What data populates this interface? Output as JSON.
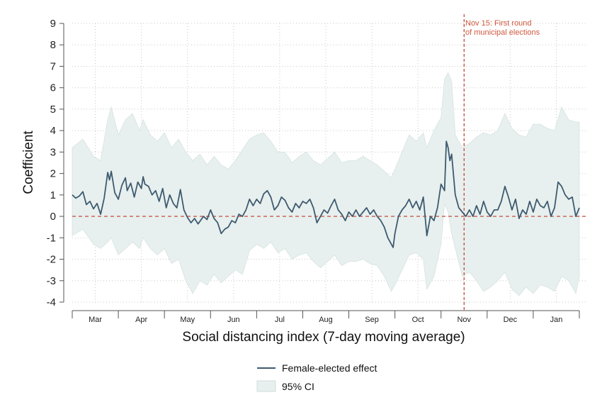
{
  "chart_data": {
    "type": "line",
    "xlabel": "Social distancing index (7-day moving average)",
    "ylabel": "Coefficient",
    "ylim": [
      -4,
      9
    ],
    "yticks": [
      -4,
      -3,
      -2,
      -1,
      0,
      1,
      2,
      3,
      4,
      5,
      6,
      7,
      8,
      9
    ],
    "x_tick_labels": [
      "Mar",
      "Apr",
      "May",
      "Jun",
      "Jul",
      "Aug",
      "Sep",
      "Oct",
      "Nov",
      "Dec",
      "Jan"
    ],
    "grid": true,
    "legend_position": "bottom-center",
    "reference_line_y": 0,
    "annotation": {
      "text_line1": "Nov 15: First round",
      "text_line2": "of municipal elections",
      "month_index": 8.5
    },
    "colors": {
      "line": "#3e5a70",
      "band": "#e7f0ee",
      "reference": "#c0392b",
      "annotation": "#d0583e"
    },
    "series": [
      {
        "name": "Female-elected effect",
        "kind": "line",
        "points": [
          [
            0.0,
            1.0
          ],
          [
            0.1,
            0.85
          ],
          [
            0.2,
            0.95
          ],
          [
            0.3,
            1.15
          ],
          [
            0.4,
            0.55
          ],
          [
            0.5,
            0.7
          ],
          [
            0.6,
            0.35
          ],
          [
            0.7,
            0.6
          ],
          [
            0.8,
            0.1
          ],
          [
            0.9,
            0.85
          ],
          [
            1.0,
            2.05
          ],
          [
            1.05,
            1.7
          ],
          [
            1.1,
            2.1
          ],
          [
            1.2,
            1.1
          ],
          [
            1.3,
            0.8
          ],
          [
            1.4,
            1.45
          ],
          [
            1.5,
            1.8
          ],
          [
            1.55,
            1.2
          ],
          [
            1.65,
            1.55
          ],
          [
            1.75,
            0.9
          ],
          [
            1.85,
            1.6
          ],
          [
            1.95,
            1.3
          ],
          [
            2.0,
            1.85
          ],
          [
            2.05,
            1.5
          ],
          [
            2.15,
            1.4
          ],
          [
            2.25,
            1.0
          ],
          [
            2.35,
            1.2
          ],
          [
            2.45,
            0.7
          ],
          [
            2.55,
            1.3
          ],
          [
            2.65,
            0.4
          ],
          [
            2.75,
            1.0
          ],
          [
            2.85,
            0.6
          ],
          [
            2.95,
            0.4
          ],
          [
            3.05,
            1.25
          ],
          [
            3.15,
            0.3
          ],
          [
            3.25,
            -0.05
          ],
          [
            3.35,
            -0.3
          ],
          [
            3.45,
            -0.1
          ],
          [
            3.55,
            -0.35
          ],
          [
            3.7,
            0.0
          ],
          [
            3.8,
            -0.15
          ],
          [
            3.9,
            0.3
          ],
          [
            4.0,
            -0.1
          ],
          [
            4.1,
            -0.3
          ],
          [
            4.2,
            -0.8
          ],
          [
            4.3,
            -0.6
          ],
          [
            4.4,
            -0.5
          ],
          [
            4.5,
            -0.2
          ],
          [
            4.6,
            -0.3
          ],
          [
            4.7,
            0.1
          ],
          [
            4.8,
            0.0
          ],
          [
            4.9,
            0.3
          ],
          [
            5.0,
            0.8
          ],
          [
            5.1,
            0.5
          ],
          [
            5.2,
            0.8
          ],
          [
            5.3,
            0.6
          ],
          [
            5.4,
            1.05
          ],
          [
            5.5,
            1.2
          ],
          [
            5.6,
            0.9
          ],
          [
            5.7,
            0.3
          ],
          [
            5.8,
            0.5
          ],
          [
            5.9,
            0.9
          ],
          [
            6.0,
            0.75
          ],
          [
            6.1,
            0.4
          ],
          [
            6.2,
            0.2
          ],
          [
            6.3,
            0.6
          ],
          [
            6.4,
            0.4
          ],
          [
            6.5,
            0.7
          ],
          [
            6.6,
            0.6
          ],
          [
            6.7,
            0.8
          ],
          [
            6.8,
            0.4
          ],
          [
            6.9,
            -0.3
          ],
          [
            7.0,
            0.0
          ],
          [
            7.1,
            0.3
          ],
          [
            7.2,
            0.15
          ],
          [
            7.3,
            0.5
          ],
          [
            7.4,
            0.8
          ],
          [
            7.5,
            0.3
          ],
          [
            7.6,
            0.1
          ],
          [
            7.7,
            -0.2
          ],
          [
            7.8,
            0.2
          ],
          [
            7.9,
            0.0
          ],
          [
            8.0,
            0.3
          ],
          [
            8.1,
            0.0
          ],
          [
            8.2,
            0.2
          ],
          [
            8.3,
            0.4
          ],
          [
            8.4,
            0.1
          ],
          [
            8.5,
            0.3
          ],
          [
            8.6,
            0.0
          ],
          [
            8.7,
            -0.2
          ],
          [
            8.8,
            -0.5
          ],
          [
            8.9,
            -1.0
          ],
          [
            9.0,
            -1.3
          ],
          [
            9.05,
            -1.45
          ],
          [
            9.1,
            -0.8
          ],
          [
            9.2,
            0.0
          ],
          [
            9.3,
            0.3
          ],
          [
            9.4,
            0.5
          ],
          [
            9.5,
            0.8
          ],
          [
            9.6,
            0.4
          ],
          [
            9.7,
            0.7
          ],
          [
            9.8,
            0.3
          ],
          [
            9.9,
            0.9
          ],
          [
            10.0,
            -0.9
          ],
          [
            10.1,
            0.0
          ],
          [
            10.2,
            -0.2
          ],
          [
            10.3,
            0.4
          ],
          [
            10.4,
            1.5
          ],
          [
            10.5,
            1.2
          ],
          [
            10.55,
            3.5
          ],
          [
            10.6,
            3.2
          ],
          [
            10.65,
            2.6
          ],
          [
            10.7,
            2.9
          ],
          [
            10.8,
            1.0
          ],
          [
            10.9,
            0.4
          ],
          [
            11.0,
            0.2
          ],
          [
            11.1,
            0.0
          ],
          [
            11.2,
            0.3
          ],
          [
            11.3,
            0.0
          ],
          [
            11.4,
            0.5
          ],
          [
            11.5,
            0.1
          ],
          [
            11.6,
            0.7
          ],
          [
            11.7,
            0.2
          ],
          [
            11.8,
            0.0
          ],
          [
            11.9,
            0.3
          ],
          [
            12.0,
            0.3
          ],
          [
            12.1,
            0.7
          ],
          [
            12.2,
            1.4
          ],
          [
            12.3,
            0.9
          ],
          [
            12.4,
            0.3
          ],
          [
            12.5,
            0.8
          ],
          [
            12.6,
            -0.1
          ],
          [
            12.7,
            0.3
          ],
          [
            12.8,
            0.1
          ],
          [
            12.9,
            0.7
          ],
          [
            13.0,
            0.2
          ],
          [
            13.1,
            0.8
          ],
          [
            13.2,
            0.5
          ],
          [
            13.3,
            0.4
          ],
          [
            13.4,
            0.7
          ],
          [
            13.5,
            0.0
          ],
          [
            13.6,
            0.4
          ],
          [
            13.7,
            1.6
          ],
          [
            13.8,
            1.4
          ],
          [
            13.9,
            1.0
          ],
          [
            14.0,
            0.8
          ],
          [
            14.1,
            0.9
          ],
          [
            14.2,
            0.0
          ],
          [
            14.3,
            0.4
          ]
        ]
      },
      {
        "name": "95% CI",
        "kind": "band",
        "points": [
          [
            0.0,
            -0.9,
            3.2
          ],
          [
            0.3,
            -0.6,
            3.6
          ],
          [
            0.6,
            -1.3,
            2.8
          ],
          [
            0.8,
            -1.5,
            2.6
          ],
          [
            1.0,
            -1.2,
            4.5
          ],
          [
            1.1,
            -1.0,
            5.1
          ],
          [
            1.3,
            -1.8,
            3.8
          ],
          [
            1.5,
            -1.5,
            4.5
          ],
          [
            1.7,
            -1.2,
            4.8
          ],
          [
            1.9,
            -1.5,
            4.0
          ],
          [
            2.0,
            -1.0,
            4.5
          ],
          [
            2.2,
            -1.5,
            3.8
          ],
          [
            2.4,
            -1.8,
            3.5
          ],
          [
            2.6,
            -1.5,
            3.9
          ],
          [
            2.8,
            -2.2,
            3.2
          ],
          [
            3.0,
            -2.0,
            3.6
          ],
          [
            3.2,
            -3.0,
            3.0
          ],
          [
            3.4,
            -3.6,
            2.6
          ],
          [
            3.6,
            -3.0,
            2.9
          ],
          [
            3.8,
            -3.2,
            2.4
          ],
          [
            4.0,
            -2.7,
            2.8
          ],
          [
            4.2,
            -3.1,
            2.4
          ],
          [
            4.4,
            -2.8,
            2.2
          ],
          [
            4.6,
            -2.5,
            2.6
          ],
          [
            4.8,
            -2.7,
            3.1
          ],
          [
            5.0,
            -1.6,
            3.6
          ],
          [
            5.2,
            -1.3,
            3.8
          ],
          [
            5.4,
            -1.5,
            3.9
          ],
          [
            5.6,
            -1.2,
            3.5
          ],
          [
            5.8,
            -1.7,
            3.0
          ],
          [
            6.0,
            -1.5,
            3.0
          ],
          [
            6.2,
            -2.0,
            2.5
          ],
          [
            6.4,
            -1.8,
            2.8
          ],
          [
            6.6,
            -1.7,
            3.0
          ],
          [
            6.8,
            -2.1,
            2.6
          ],
          [
            7.0,
            -2.4,
            2.4
          ],
          [
            7.2,
            -2.1,
            2.7
          ],
          [
            7.4,
            -1.8,
            3.0
          ],
          [
            7.6,
            -2.3,
            2.5
          ],
          [
            7.8,
            -2.1,
            2.6
          ],
          [
            8.0,
            -2.1,
            2.6
          ],
          [
            8.2,
            -2.0,
            2.8
          ],
          [
            8.4,
            -2.2,
            2.6
          ],
          [
            8.6,
            -2.3,
            2.4
          ],
          [
            8.8,
            -2.8,
            2.1
          ],
          [
            9.0,
            -3.5,
            1.8
          ],
          [
            9.1,
            -3.2,
            2.2
          ],
          [
            9.3,
            -2.5,
            3.0
          ],
          [
            9.5,
            -1.8,
            3.8
          ],
          [
            9.7,
            -1.7,
            3.5
          ],
          [
            9.9,
            -2.0,
            3.9
          ],
          [
            10.0,
            -3.4,
            3.2
          ],
          [
            10.2,
            -2.8,
            4.0
          ],
          [
            10.4,
            -1.3,
            4.6
          ],
          [
            10.5,
            0.6,
            6.4
          ],
          [
            10.6,
            0.2,
            6.7
          ],
          [
            10.7,
            -0.8,
            6.3
          ],
          [
            10.8,
            -1.5,
            3.8
          ],
          [
            11.0,
            -2.8,
            3.2
          ],
          [
            11.2,
            -2.6,
            3.4
          ],
          [
            11.4,
            -3.0,
            3.7
          ],
          [
            11.6,
            -3.5,
            3.9
          ],
          [
            11.8,
            -3.3,
            3.8
          ],
          [
            12.0,
            -3.0,
            4.0
          ],
          [
            12.2,
            -2.6,
            4.8
          ],
          [
            12.4,
            -3.4,
            4.1
          ],
          [
            12.6,
            -3.7,
            3.8
          ],
          [
            12.8,
            -3.3,
            3.7
          ],
          [
            13.0,
            -3.6,
            4.3
          ],
          [
            13.2,
            -3.2,
            4.3
          ],
          [
            13.4,
            -3.3,
            4.1
          ],
          [
            13.6,
            -3.5,
            4.0
          ],
          [
            13.8,
            -2.8,
            5.1
          ],
          [
            14.0,
            -3.0,
            4.5
          ],
          [
            14.2,
            -3.6,
            4.4
          ],
          [
            14.3,
            -2.8,
            4.4
          ]
        ]
      }
    ]
  },
  "legend": {
    "items": [
      {
        "label": "Female-elected effect"
      },
      {
        "label": "95% CI"
      }
    ]
  }
}
